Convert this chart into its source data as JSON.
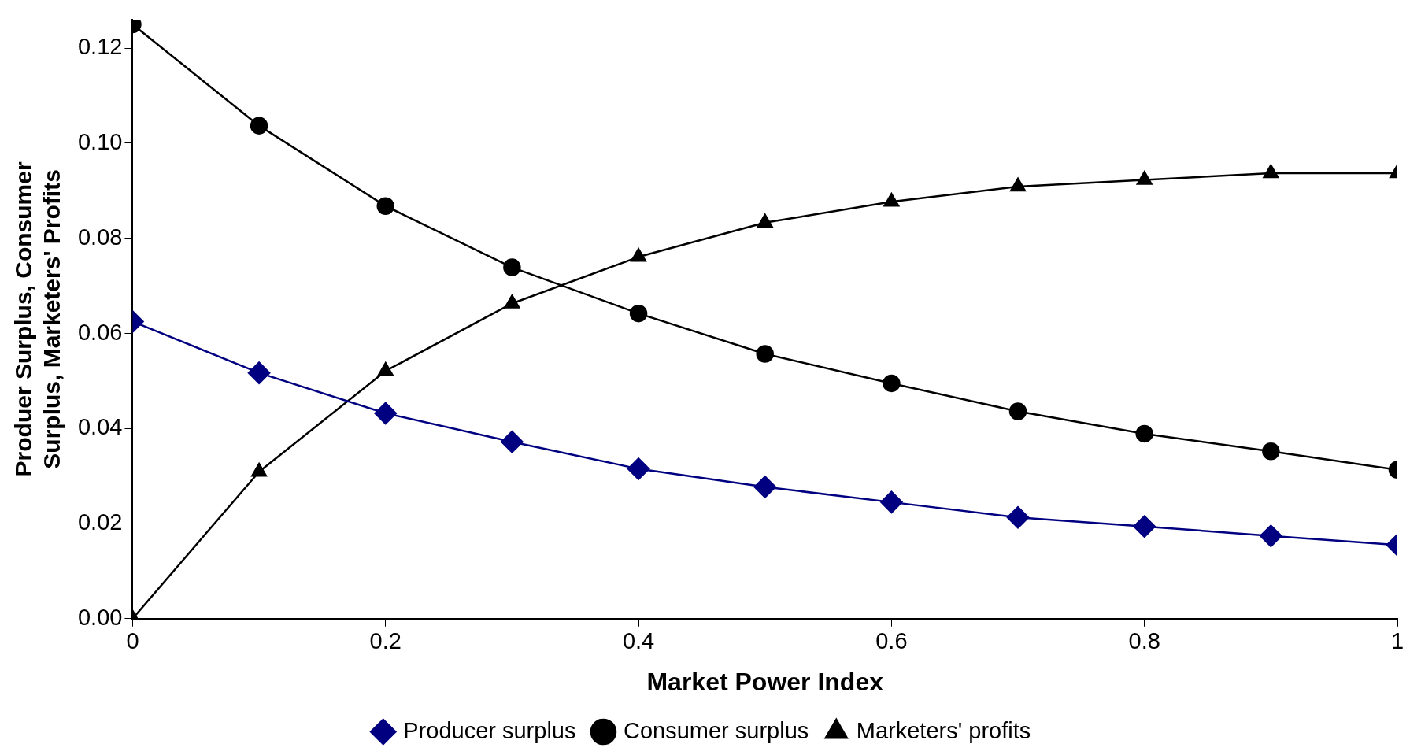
{
  "chart_data": {
    "type": "line",
    "xlabel": "Market Power Index",
    "ylabel": "Produer Surplus, Consumer Surplus, Marketers' Profits",
    "x": [
      0,
      0.1,
      0.2,
      0.3,
      0.4,
      0.5,
      0.6,
      0.7,
      0.8,
      0.9,
      1
    ],
    "series": [
      {
        "name": "Producer surplus",
        "color": "#000080",
        "marker": "diamond",
        "values": [
          0.0625,
          0.0517,
          0.0432,
          0.0372,
          0.0315,
          0.0277,
          0.0245,
          0.0213,
          0.0194,
          0.0174,
          0.0155
        ]
      },
      {
        "name": "Consumer surplus",
        "color": "#000000",
        "marker": "circle",
        "values": [
          0.125,
          0.1037,
          0.0868,
          0.0739,
          0.0642,
          0.0557,
          0.0495,
          0.0436,
          0.0389,
          0.0352,
          0.0313
        ]
      },
      {
        "name": "Marketers' profits",
        "color": "#000000",
        "marker": "triangle",
        "values": [
          0,
          0.0309,
          0.0521,
          0.0663,
          0.0761,
          0.0833,
          0.0877,
          0.0909,
          0.0923,
          0.0937,
          0.0937
        ]
      }
    ],
    "xlim": [
      0,
      1
    ],
    "xticks": [
      0,
      0.2,
      0.4,
      0.6,
      0.8,
      1
    ],
    "ylim": [
      0,
      0.126
    ],
    "yticks": [
      {
        "value": 0,
        "label": "0.00"
      },
      {
        "value": 0.02,
        "label": "0.02"
      },
      {
        "value": 0.04,
        "label": "0.04"
      },
      {
        "value": 0.06,
        "label": "0.06"
      },
      {
        "value": 0.08,
        "label": "0.08"
      },
      {
        "value": 0.1,
        "label": "0.10"
      },
      {
        "value": 0.12,
        "label": "0.12"
      }
    ],
    "grid": false,
    "legend": "bottom",
    "line_style": "solid"
  }
}
